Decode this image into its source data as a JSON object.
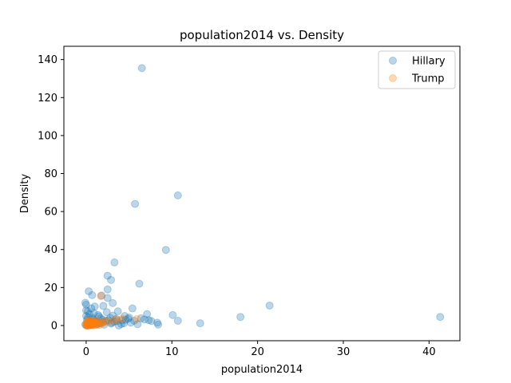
{
  "chart_data": {
    "type": "scatter",
    "title": "population2014 vs. Density",
    "xlabel": "population2014",
    "ylabel": "Density",
    "xlim": [
      -2.6,
      43.6
    ],
    "ylim": [
      -8,
      147
    ],
    "xticks": [
      0,
      10,
      20,
      30,
      40
    ],
    "yticks": [
      0,
      20,
      40,
      60,
      80,
      100,
      120,
      140
    ],
    "grid": false,
    "legend_position": "top-right",
    "series": [
      {
        "name": "Hillary",
        "color": "#1f77b4",
        "alpha": 0.3,
        "points": [
          [
            6.5,
            135.5
          ],
          [
            5.7,
            64.0
          ],
          [
            10.7,
            68.5
          ],
          [
            9.3,
            39.8
          ],
          [
            3.3,
            33.2
          ],
          [
            2.5,
            26.2
          ],
          [
            2.9,
            24.0
          ],
          [
            6.2,
            22.0
          ],
          [
            21.4,
            10.5
          ],
          [
            2.5,
            19.0
          ],
          [
            0.3,
            18.0
          ],
          [
            0.7,
            16.0
          ],
          [
            2.5,
            14.5
          ],
          [
            1.8,
            15.8
          ],
          [
            3.1,
            11.8
          ],
          [
            -0.1,
            12.0
          ],
          [
            0.0,
            11.0
          ],
          [
            1.0,
            10.0
          ],
          [
            2.0,
            10.3
          ],
          [
            0.6,
            9.0
          ],
          [
            5.4,
            9.0
          ],
          [
            0.0,
            8.0
          ],
          [
            3.7,
            7.5
          ],
          [
            2.4,
            7.0
          ],
          [
            0.9,
            6.5
          ],
          [
            7.1,
            6.0
          ],
          [
            10.1,
            5.5
          ],
          [
            18.0,
            4.5
          ],
          [
            41.3,
            4.5
          ],
          [
            3.1,
            5.2
          ],
          [
            4.5,
            5.0
          ],
          [
            1.5,
            4.8
          ],
          [
            0.2,
            4.2
          ],
          [
            2.8,
            4.0
          ],
          [
            6.4,
            3.8
          ],
          [
            3.5,
            3.5
          ],
          [
            4.9,
            3.5
          ],
          [
            0.8,
            3.2
          ],
          [
            1.9,
            3.0
          ],
          [
            7.3,
            2.8
          ],
          [
            10.7,
            2.5
          ],
          [
            4.2,
            2.8
          ],
          [
            2.3,
            2.5
          ],
          [
            5.6,
            2.5
          ],
          [
            7.6,
            2.4
          ],
          [
            1.1,
            2.2
          ],
          [
            3.3,
            2.0
          ],
          [
            0.5,
            1.8
          ],
          [
            5.2,
            1.5
          ],
          [
            13.3,
            1.2
          ],
          [
            8.3,
            1.5
          ],
          [
            8.4,
            0.5
          ],
          [
            4.1,
            0.8
          ],
          [
            2.9,
            1.0
          ],
          [
            1.6,
            1.2
          ],
          [
            0.3,
            1.0
          ],
          [
            -0.1,
            0.5
          ],
          [
            0.1,
            0.0
          ],
          [
            0.6,
            0.3
          ],
          [
            1.3,
            0.6
          ],
          [
            2.1,
            0.4
          ],
          [
            3.8,
            0.0
          ],
          [
            6.0,
            0.7
          ],
          [
            0.9,
            2.5
          ],
          [
            0.1,
            3.0
          ],
          [
            1.7,
            3.8
          ],
          [
            2.6,
            2.8
          ],
          [
            4.6,
            3.0
          ],
          [
            3.0,
            1.5
          ],
          [
            0.4,
            6.0
          ],
          [
            0.0,
            5.0
          ],
          [
            0.2,
            7.5
          ],
          [
            1.4,
            5.5
          ],
          [
            3.6,
            2.4
          ],
          [
            5.0,
            4.2
          ],
          [
            6.8,
            3.2
          ],
          [
            2.0,
            1.8
          ],
          [
            0.7,
            4.0
          ],
          [
            4.4,
            1.2
          ],
          [
            1.2,
            0.9
          ]
        ]
      },
      {
        "name": "Trump",
        "color": "#ff7f0e",
        "alpha": 0.3,
        "points": [
          [
            1.7,
            15.5
          ],
          [
            0.0,
            0.0
          ],
          [
            0.1,
            0.2
          ],
          [
            0.2,
            0.5
          ],
          [
            0.3,
            0.1
          ],
          [
            0.4,
            0.8
          ],
          [
            0.5,
            1.2
          ],
          [
            0.6,
            0.3
          ],
          [
            0.7,
            1.6
          ],
          [
            0.8,
            0.6
          ],
          [
            0.9,
            2.0
          ],
          [
            1.0,
            0.9
          ],
          [
            1.1,
            1.4
          ],
          [
            1.2,
            0.4
          ],
          [
            1.4,
            1.0
          ],
          [
            0.05,
            1.5
          ],
          [
            0.15,
            1.9
          ],
          [
            0.25,
            2.3
          ],
          [
            0.35,
            0.0
          ],
          [
            0.45,
            0.4
          ],
          [
            0.55,
            2.4
          ],
          [
            0.65,
            1.0
          ],
          [
            0.75,
            0.2
          ],
          [
            0.85,
            1.3
          ],
          [
            1.3,
            2.2
          ],
          [
            1.5,
            0.3
          ],
          [
            1.6,
            1.8
          ],
          [
            1.8,
            1.1
          ],
          [
            2.0,
            1.5
          ],
          [
            2.2,
            2.3
          ],
          [
            2.6,
            1.9
          ],
          [
            3.2,
            2.6
          ],
          [
            3.6,
            3.2
          ],
          [
            4.2,
            3.6
          ],
          [
            5.9,
            3.4
          ],
          [
            0.0,
            0.7
          ],
          [
            0.1,
            1.1
          ],
          [
            0.2,
            0.0
          ],
          [
            0.3,
            1.7
          ],
          [
            0.4,
            2.6
          ],
          [
            0.5,
            0.6
          ],
          [
            0.6,
            1.4
          ],
          [
            0.7,
            0.9
          ],
          [
            0.9,
            0.1
          ],
          [
            1.0,
            2.5
          ]
        ]
      }
    ]
  }
}
